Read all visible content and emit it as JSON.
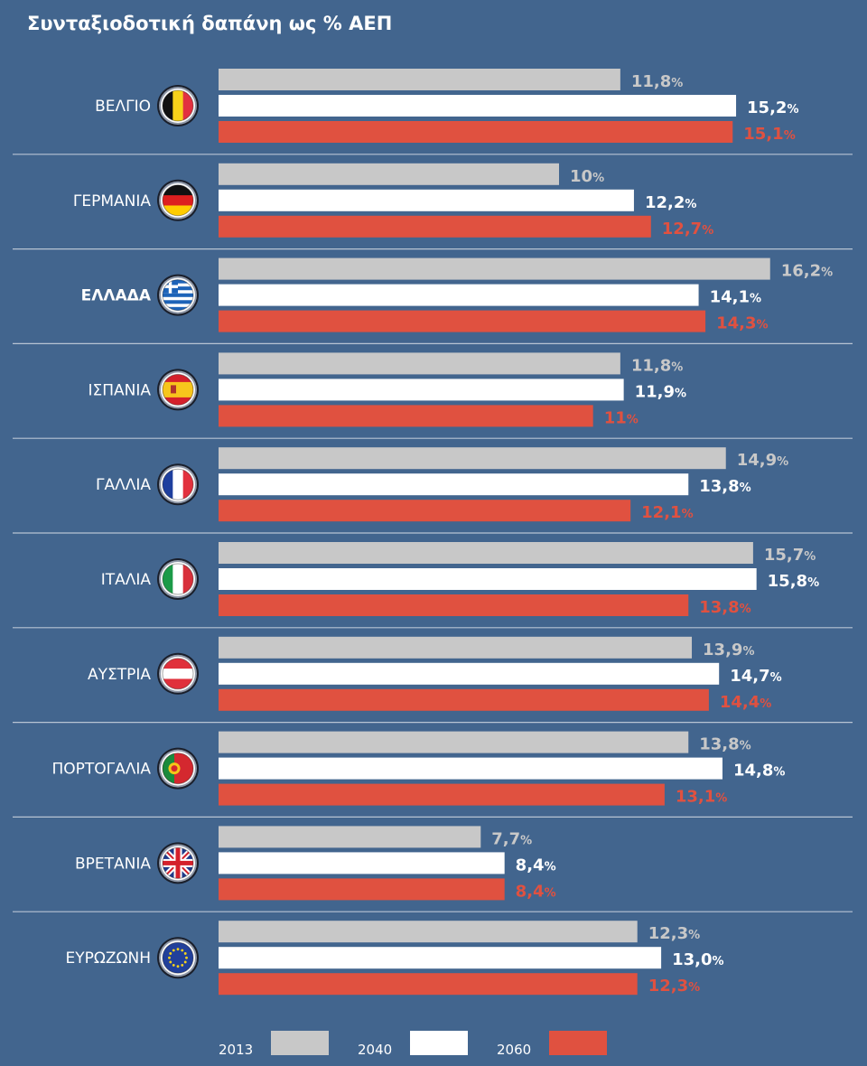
{
  "colors": {
    "background": "#42658e",
    "bar_2013": "#c8c8c8",
    "bar_2040": "#ffffff",
    "bar_2060": "#e05140",
    "label_2013": "#c8c8c8",
    "label_2040": "#ffffff",
    "label_2060": "#e05140",
    "separator": "#b7c4d3"
  },
  "chart_data": {
    "type": "bar",
    "orientation": "horizontal",
    "title": "Συνταξιοδοτική δαπάνη ως % ΑΕΠ",
    "percent_suffix": "%",
    "categories": [
      "ΒΕΛΓΙΟ",
      "ΓΕΡΜΑΝΙΑ",
      "ΕΛΛΑΔΑ",
      "ΙΣΠΑΝΙΑ",
      "ΓΑΛΛΙΑ",
      "ΙΤΑΛΙΑ",
      "ΑΥΣΤΡΙΑ",
      "ΠΟΡΤΟΓΑΛΙΑ",
      "ΒΡΕΤΑΝΙΑ",
      "ΕΥΡΩΖΩΝΗ"
    ],
    "highlighted_category": "ΕΛΛΑΔΑ",
    "flags": [
      "belgium-flag-icon",
      "germany-flag-icon",
      "greece-flag-icon",
      "spain-flag-icon",
      "france-flag-icon",
      "italy-flag-icon",
      "austria-flag-icon",
      "portugal-flag-icon",
      "uk-flag-icon",
      "eu-flag-icon"
    ],
    "series": [
      {
        "name": "2013",
        "values": [
          11.8,
          10,
          16.2,
          11.8,
          14.9,
          15.7,
          13.9,
          13.8,
          7.7,
          12.3
        ],
        "labels": [
          "11,8",
          "10",
          "16,2",
          "11,8",
          "14,9",
          "15,7",
          "13,9",
          "13,8",
          "7,7",
          "12,3"
        ]
      },
      {
        "name": "2040",
        "values": [
          15.2,
          12.2,
          14.1,
          11.9,
          13.8,
          15.8,
          14.7,
          14.8,
          8.4,
          13.0
        ],
        "labels": [
          "15,2",
          "12,2",
          "14,1",
          "11,9",
          "13,8",
          "15,8",
          "14,7",
          "14,8",
          "8,4",
          "13,0"
        ]
      },
      {
        "name": "2060",
        "values": [
          15.1,
          12.7,
          14.3,
          11,
          12.1,
          13.8,
          14.4,
          13.1,
          8.4,
          12.3
        ],
        "labels": [
          "15,1",
          "12,7",
          "14,3",
          "11",
          "12,1",
          "13,8",
          "14,4",
          "13,1",
          "8,4",
          "12,3"
        ]
      }
    ],
    "legend": [
      "2013",
      "2040",
      "2060"
    ],
    "legend_position": "bottom",
    "xlabel": "",
    "ylabel": "",
    "grid": false
  }
}
